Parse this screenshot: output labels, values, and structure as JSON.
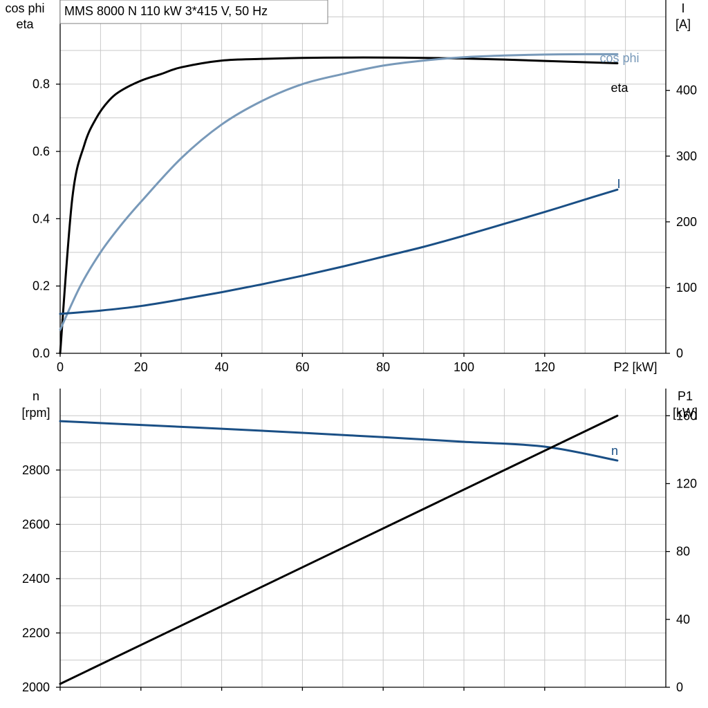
{
  "chart_data": [
    {
      "type": "line",
      "title": "MMS 8000 N   110 kW   3*415 V, 50 Hz",
      "xlabel": "P2 [kW]",
      "xlim": [
        0,
        150
      ],
      "x_ticks": [
        0,
        20,
        40,
        60,
        80,
        100,
        120
      ],
      "left_axis": {
        "label_lines": [
          "cos phi",
          "eta"
        ],
        "lim": [
          0,
          1.05
        ],
        "ticks": [
          0.0,
          0.2,
          0.4,
          0.6,
          0.8
        ],
        "tick_labels": [
          "0.0",
          "0.2",
          "0.4",
          "0.6",
          "0.8"
        ]
      },
      "right_axis": {
        "label_lines": [
          "I",
          "[A]"
        ],
        "lim": [
          0,
          537.5
        ],
        "ticks": [
          0,
          100,
          200,
          300,
          400
        ],
        "tick_labels": [
          "0",
          "100",
          "200",
          "300",
          "400"
        ]
      },
      "grid": true,
      "series": [
        {
          "name": "eta",
          "axis": "left",
          "color": "#000000",
          "x": [
            0,
            3,
            6,
            9,
            12,
            15,
            20,
            25,
            30,
            40,
            50,
            60,
            70,
            80,
            90,
            100,
            110,
            120,
            130,
            138
          ],
          "y": [
            0.0,
            0.46,
            0.62,
            0.7,
            0.75,
            0.78,
            0.81,
            0.83,
            0.85,
            0.87,
            0.875,
            0.878,
            0.879,
            0.879,
            0.878,
            0.876,
            0.873,
            0.869,
            0.865,
            0.862
          ]
        },
        {
          "name": "cos phi",
          "axis": "left",
          "color": "#7899b9",
          "x": [
            0,
            5,
            10,
            15,
            20,
            30,
            40,
            50,
            60,
            70,
            80,
            90,
            100,
            110,
            120,
            130,
            138
          ],
          "y": [
            0.07,
            0.2,
            0.3,
            0.38,
            0.45,
            0.58,
            0.68,
            0.75,
            0.8,
            0.83,
            0.855,
            0.87,
            0.88,
            0.885,
            0.888,
            0.889,
            0.889
          ]
        },
        {
          "name": "I",
          "axis": "right",
          "color": "#1a4f85",
          "x": [
            0,
            10,
            20,
            30,
            40,
            50,
            60,
            70,
            80,
            90,
            100,
            110,
            120,
            130,
            138
          ],
          "y": [
            60,
            65,
            72,
            82,
            93,
            105,
            118,
            132,
            147,
            162,
            179,
            197,
            215,
            234,
            249
          ]
        }
      ]
    },
    {
      "type": "line",
      "title": "",
      "xlim": [
        0,
        150
      ],
      "x_ticks": [
        0,
        20,
        40,
        60,
        80,
        100,
        120
      ],
      "left_axis": {
        "label_lines": [
          "n",
          "[rpm]"
        ],
        "lim": [
          2000,
          3100
        ],
        "ticks": [
          2000,
          2200,
          2400,
          2600,
          2800
        ],
        "tick_labels": [
          "2000",
          "2200",
          "2400",
          "2600",
          "2800"
        ]
      },
      "right_axis": {
        "label_lines": [
          "P1",
          "[kW]"
        ],
        "lim": [
          0,
          176
        ],
        "ticks": [
          0,
          40,
          80,
          120,
          160
        ],
        "tick_labels": [
          "0",
          "40",
          "80",
          "120",
          "160"
        ]
      },
      "grid": true,
      "series": [
        {
          "name": "n",
          "axis": "left",
          "color": "#1a4f85",
          "x": [
            0,
            20,
            40,
            60,
            80,
            100,
            120,
            138
          ],
          "y": [
            2980,
            2966,
            2952,
            2937,
            2921,
            2904,
            2886,
            2835
          ]
        },
        {
          "name": "",
          "axis": "right",
          "color": "#000000",
          "x": [
            0,
            138
          ],
          "y": [
            2,
            160
          ]
        }
      ]
    }
  ]
}
